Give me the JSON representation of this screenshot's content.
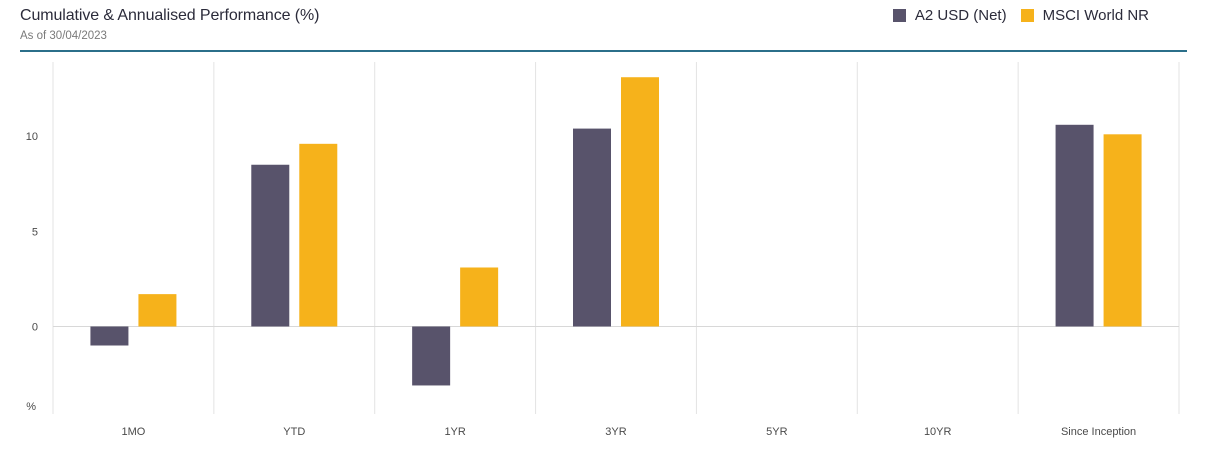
{
  "header": {
    "title": "Cumulative & Annualised Performance (%)",
    "subtitle": "As of 30/04/2023"
  },
  "legend": [
    {
      "name": "A2 USD (Net)",
      "color": "#58536b"
    },
    {
      "name": "MSCI World NR",
      "color": "#f6b21b"
    }
  ],
  "chart_data": {
    "type": "bar",
    "title": "Cumulative & Annualised Performance (%)",
    "categories": [
      "1MO",
      "YTD",
      "1YR",
      "3YR",
      "5YR",
      "10YR",
      "Since Inception"
    ],
    "series": [
      {
        "name": "A2 USD (Net)",
        "color": "#58536b",
        "values": [
          -1.0,
          8.5,
          -3.1,
          10.4,
          null,
          null,
          10.6
        ]
      },
      {
        "name": "MSCI World NR",
        "color": "#f6b21b",
        "values": [
          1.7,
          9.6,
          3.1,
          13.1,
          null,
          null,
          10.1
        ]
      }
    ],
    "ylim": [
      -4.6,
      13.9
    ],
    "yticks": [
      0,
      5,
      10
    ],
    "ylabel": "%",
    "grid": "vertical",
    "legend_position": "top-right"
  }
}
